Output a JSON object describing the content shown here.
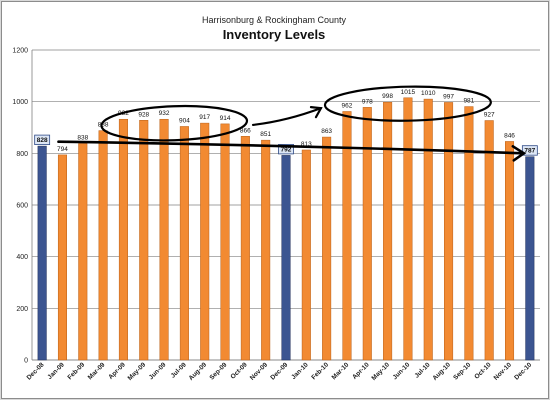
{
  "chart_data": {
    "type": "bar",
    "subtitle": "Harrisonburg & Rockingham County",
    "title": "Inventory Levels",
    "categories": [
      "Dec-08",
      "Jan-09",
      "Feb-09",
      "Mar-09",
      "Apr-09",
      "May-09",
      "Jun-09",
      "Jul-09",
      "Aug-09",
      "Sep-09",
      "Oct-09",
      "Nov-09",
      "Dec-09",
      "Jan-10",
      "Feb-10",
      "Mar-10",
      "Apr-10",
      "May-10",
      "Jun-10",
      "Jul-10",
      "Aug-10",
      "Sep-10",
      "Oct-10",
      "Nov-10",
      "Dec-10"
    ],
    "values": [
      828,
      794,
      838,
      888,
      932,
      928,
      932,
      904,
      917,
      914,
      866,
      851,
      792,
      813,
      863,
      962,
      978,
      998,
      1015,
      1010,
      997,
      981,
      927,
      846,
      787
    ],
    "value_labels": [
      "828",
      "794",
      "838",
      "888",
      "932",
      "928",
      "932",
      "904",
      "917",
      "914",
      "866",
      "851",
      "792",
      "813",
      "863",
      "962",
      "978",
      "998",
      "1015",
      "1010",
      "997",
      "981",
      "927",
      "846",
      "787"
    ],
    "highlighted_categories": [
      "Dec-08",
      "Dec-09",
      "Dec-10"
    ],
    "ylim": [
      0,
      1200
    ],
    "yticks": [
      0,
      200,
      400,
      600,
      800,
      1000,
      1200
    ],
    "ytick_labels": [
      "0",
      "200",
      "400",
      "600",
      "800",
      "1000",
      "1200"
    ],
    "grid": true,
    "colors": {
      "bar": "#f28a32",
      "bar_highlight": "#3c5591",
      "gridline": "#808080",
      "annotation": "#000000",
      "highlight_label_box": "#dde7f6"
    }
  }
}
